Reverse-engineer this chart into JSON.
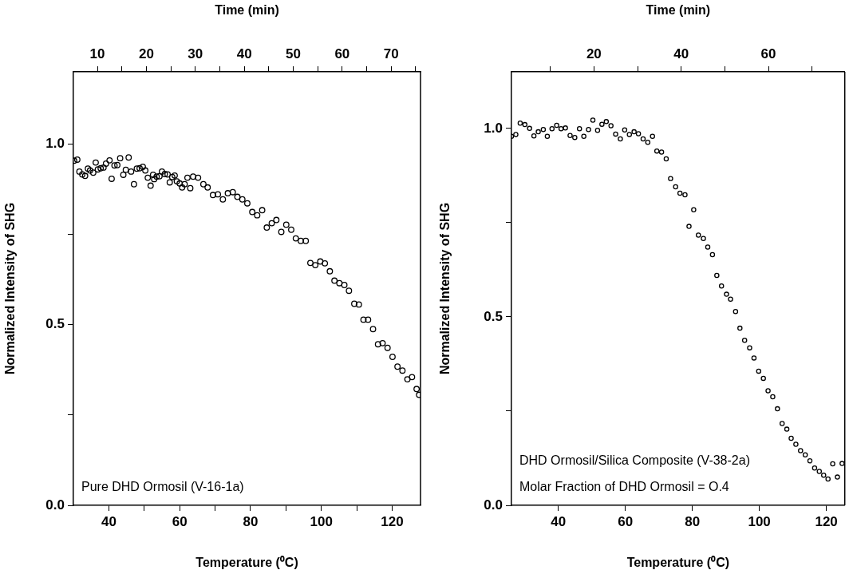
{
  "chart_data": [
    {
      "type": "scatter",
      "xlabel": "Temperature (⁰C)",
      "ylabel": "Normalized Intensity of SHG",
      "x2label": "Time (min)",
      "marker": "circle",
      "xlim": [
        30,
        128
      ],
      "xticks": [
        40,
        {
          "value": 50,
          "label": null
        },
        60,
        {
          "value": 70,
          "label": null
        },
        80,
        {
          "value": 90,
          "label": null
        },
        100,
        {
          "value": 110,
          "label": null
        },
        120
      ],
      "ylim": [
        0,
        1.2
      ],
      "yticks": [
        {
          "value": 0,
          "label": "0.0"
        },
        {
          "value": 0.25,
          "label": null
        },
        {
          "value": 0.5,
          "label": "0.5"
        },
        {
          "value": 0.75,
          "label": null
        },
        {
          "value": 1,
          "label": "1.0"
        }
      ],
      "x2lim": [
        5.1,
        76
      ],
      "x2ticks": [
        10,
        {
          "value": 15,
          "label": null
        },
        20,
        {
          "value": 25,
          "label": null
        },
        30,
        {
          "value": 35,
          "label": null
        },
        40,
        {
          "value": 45,
          "label": null
        },
        50,
        {
          "value": 55,
          "label": null
        },
        60,
        {
          "value": 65,
          "label": null
        },
        70,
        {
          "value": 75,
          "label": null
        }
      ],
      "annotations": [
        "Pure DHD Ormosil (V-16-1a)"
      ],
      "series": [
        {
          "color": "#000000",
          "x": [
            30.2,
            31.1,
            31.7,
            32.5,
            33.3,
            34.1,
            34.7,
            35.6,
            36.3,
            36.9,
            37.7,
            38.5,
            39.2,
            40.2,
            40.8,
            41.6,
            42.4,
            43.2,
            44.1,
            44.8,
            45.6,
            46.3,
            47.1,
            47.9,
            48.7,
            49.6,
            50.3,
            51.0,
            51.8,
            52.5,
            52.8,
            53.5,
            54.3,
            55.0,
            55.8,
            56.6,
            57.2,
            57.9,
            58.6,
            59.2,
            60.0,
            60.7,
            61.4,
            62.2,
            63.0,
            63.8,
            65.2,
            66.7,
            67.9,
            69.4,
            70.8,
            72.2,
            73.6,
            75.0,
            76.3,
            77.7,
            79.1,
            80.5,
            81.9,
            83.3,
            84.6,
            86.0,
            87.3,
            88.7,
            90.1,
            91.5,
            92.8,
            94.2,
            95.6,
            96.9,
            98.3,
            99.7,
            101.0,
            102.4,
            103.7,
            105.1,
            106.5,
            107.8,
            109.3,
            110.6,
            111.9,
            113.2,
            114.6,
            116.0,
            117.3,
            118.7,
            120.1,
            121.5,
            122.9,
            124.3,
            125.6,
            126.9,
            127.6
          ],
          "values": [
            0.954,
            0.957,
            0.924,
            0.916,
            0.912,
            0.932,
            0.927,
            0.921,
            0.949,
            0.93,
            0.933,
            0.935,
            0.946,
            0.955,
            0.904,
            0.941,
            0.942,
            0.961,
            0.915,
            0.929,
            0.963,
            0.924,
            0.889,
            0.932,
            0.933,
            0.937,
            0.927,
            0.907,
            0.885,
            0.915,
            0.903,
            0.91,
            0.911,
            0.924,
            0.917,
            0.916,
            0.894,
            0.909,
            0.913,
            0.897,
            0.891,
            0.88,
            0.889,
            0.907,
            0.878,
            0.91,
            0.907,
            0.889,
            0.88,
            0.859,
            0.861,
            0.847,
            0.864,
            0.867,
            0.854,
            0.847,
            0.836,
            0.812,
            0.803,
            0.817,
            0.769,
            0.781,
            0.79,
            0.757,
            0.777,
            0.763,
            0.739,
            0.732,
            0.732,
            0.671,
            0.665,
            0.675,
            0.67,
            0.648,
            0.622,
            0.615,
            0.61,
            0.594,
            0.558,
            0.556,
            0.514,
            0.514,
            0.488,
            0.446,
            0.449,
            0.436,
            0.411,
            0.384,
            0.373,
            0.349,
            0.355,
            0.322,
            0.306
          ]
        }
      ]
    },
    {
      "type": "scatter",
      "xlabel": "Temperature (⁰C)",
      "ylabel": "Normalized Intensity of SHG",
      "x2label": "Time (min)",
      "marker": "circle",
      "xlim": [
        26,
        125.5
      ],
      "xticks": [
        40,
        60,
        80,
        100,
        120
      ],
      "ylim": [
        0,
        1.15
      ],
      "yticks": [
        {
          "value": 0,
          "label": "0.0"
        },
        {
          "value": 0.25,
          "label": null
        },
        {
          "value": 0.5,
          "label": "0.5"
        },
        {
          "value": 0.75,
          "label": null
        },
        {
          "value": 1,
          "label": "1.0"
        }
      ],
      "x2lim": [
        1.1,
        77.5
      ],
      "x2ticks": [
        {
          "value": 10,
          "label": null
        },
        20,
        {
          "value": 30,
          "label": null
        },
        40,
        {
          "value": 50,
          "label": null
        },
        60,
        {
          "value": 70,
          "label": null
        }
      ],
      "annotations": [
        "DHD Ormosil/Silica Composite (V-38-2a)",
        "Molar Fraction of DHD Ormosil = O.4"
      ],
      "series": [
        {
          "color": "#000000",
          "x": [
            26.0,
            27.3,
            28.6,
            30.0,
            31.4,
            32.7,
            34.0,
            35.5,
            36.7,
            38.1,
            39.5,
            40.8,
            42.1,
            43.5,
            44.9,
            46.3,
            47.6,
            49.0,
            50.3,
            51.7,
            53.0,
            54.3,
            55.7,
            57.1,
            58.5,
            59.8,
            61.2,
            62.6,
            63.9,
            65.3,
            66.7,
            68.1,
            69.4,
            70.8,
            72.2,
            73.5,
            75.0,
            76.3,
            77.8,
            79.0,
            80.4,
            81.8,
            83.3,
            84.6,
            86.0,
            87.3,
            88.7,
            90.2,
            91.4,
            92.9,
            94.2,
            95.6,
            97.1,
            98.4,
            99.8,
            101.2,
            102.6,
            104.0,
            105.4,
            106.8,
            108.2,
            109.5,
            110.9,
            112.3,
            113.7,
            115.1,
            116.5,
            117.9,
            119.2,
            120.5,
            121.9,
            123.3,
            124.7
          ],
          "values": [
            0.979,
            0.984,
            1.014,
            1.01,
            1.0,
            0.98,
            0.991,
            0.997,
            0.979,
            0.999,
            1.008,
            0.999,
            1.001,
            0.981,
            0.976,
            0.999,
            0.979,
            0.997,
            1.022,
            0.995,
            1.011,
            1.018,
            1.007,
            0.985,
            0.972,
            0.996,
            0.984,
            0.991,
            0.986,
            0.972,
            0.963,
            0.979,
            0.94,
            0.937,
            0.919,
            0.867,
            0.845,
            0.828,
            0.824,
            0.74,
            0.784,
            0.717,
            0.708,
            0.685,
            0.665,
            0.61,
            0.582,
            0.56,
            0.547,
            0.514,
            0.47,
            0.438,
            0.418,
            0.391,
            0.356,
            0.337,
            0.304,
            0.288,
            0.256,
            0.217,
            0.202,
            0.178,
            0.162,
            0.145,
            0.134,
            0.118,
            0.099,
            0.09,
            0.08,
            0.07,
            0.11,
            0.075,
            0.111
          ]
        }
      ]
    }
  ]
}
